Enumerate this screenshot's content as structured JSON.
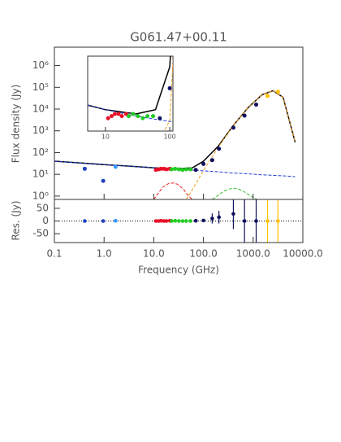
{
  "chart_data": {
    "type": "line",
    "title": "G061.47+00.11",
    "x_label": "Frequency (GHz)",
    "y_label": "Flux density (Jy)",
    "log_x": true,
    "log_y": true,
    "xlim": [
      0.1,
      10000
    ],
    "xticks": [
      0.1,
      {
        "value": 1,
        "label": "1.0"
      },
      {
        "value": 10,
        "label": "10.0"
      },
      {
        "value": 100,
        "label": "100.0"
      },
      {
        "value": 1000,
        "label": "1000.0"
      },
      {
        "value": 10000,
        "label": "10000.0"
      }
    ],
    "ylim": [
      0.7,
      7000000
    ],
    "yticks": [
      {
        "value": 1,
        "label": "10⁰"
      },
      {
        "value": 10,
        "label": "10¹"
      },
      {
        "value": 100,
        "label": "10²"
      },
      {
        "value": 1000,
        "label": "10³"
      },
      {
        "value": 10000,
        "label": "10⁴"
      },
      {
        "value": 100000,
        "label": "10⁵"
      },
      {
        "value": 1000000,
        "label": "10⁶"
      }
    ],
    "series": [
      {
        "color": "#000000",
        "style": "solid",
        "x": [
          0.1,
          0.3,
          1,
          3,
          10,
          30,
          60,
          100,
          200,
          400,
          800,
          1500,
          2500,
          4000,
          7000
        ],
        "values": [
          40,
          34,
          28,
          24,
          20,
          18,
          20,
          40,
          200,
          1800,
          12000,
          45000,
          70000,
          35000,
          300
        ]
      },
      {
        "color": "#1f3fd0",
        "style": "dashed",
        "x": [
          0.1,
          0.3,
          1,
          3,
          10,
          30,
          60,
          100,
          200,
          400,
          800,
          1500,
          2500,
          4000,
          7000
        ],
        "values": [
          40,
          34,
          28,
          24,
          20,
          17,
          15.5,
          14.5,
          13,
          11.5,
          10.5,
          9.5,
          9,
          8.5,
          7.8
        ]
      },
      {
        "color": "#e82020",
        "style": "dashed",
        "x": [
          10,
          15,
          20,
          25,
          30,
          40,
          50,
          60
        ],
        "values": [
          0.7,
          2.5,
          3.8,
          4,
          3.5,
          2,
          1,
          0.7
        ]
      },
      {
        "color": "#f0a020",
        "style": "dashed",
        "x": [
          45,
          60,
          100,
          200,
          400,
          800,
          1500,
          2500,
          4000,
          7000
        ],
        "values": [
          0.7,
          2,
          15,
          180,
          1790,
          12000,
          45000,
          70000,
          35000,
          300
        ]
      },
      {
        "color": "#30c030",
        "style": "dashed",
        "x": [
          150,
          250,
          350,
          450,
          600,
          900,
          1200
        ],
        "values": [
          0.7,
          1.6,
          2.2,
          2.3,
          1.8,
          1,
          0.7
        ]
      }
    ],
    "points": [
      {
        "color": "#2040c0",
        "x": [
          0.408,
          0.96
        ],
        "values": [
          18,
          5
        ]
      },
      {
        "color": "#3399ff",
        "x": [
          1.7
        ],
        "values": [
          22
        ]
      },
      {
        "color": "#e8102a",
        "x": [
          11,
          12.5,
          14,
          16,
          18,
          21
        ],
        "values": [
          16,
          17,
          18,
          18,
          17,
          18
        ]
      },
      {
        "color": "#22cc22",
        "x": [
          23,
          27,
          32,
          38,
          45,
          55
        ],
        "values": [
          17,
          18,
          17,
          16,
          17,
          17
        ]
      },
      {
        "color": "#101060",
        "x": [
          70,
          100,
          150,
          205,
          400,
          670,
          1150
        ],
        "values": [
          16,
          30,
          45,
          150,
          1400,
          5000,
          16000
        ]
      },
      {
        "color": "#ffc000",
        "x": [
          1950,
          3160
        ],
        "values": [
          40000,
          63000
        ]
      }
    ],
    "residuals": {
      "y_label": "Res. (Jy)",
      "ylim": [
        -85,
        85
      ],
      "yticks": [
        -50,
        0,
        50
      ],
      "series": [
        {
          "color": "#2040c0",
          "x": [
            0.408,
            0.96
          ],
          "values": [
            0,
            0
          ],
          "errors": [
            2,
            3
          ]
        },
        {
          "color": "#3399ff",
          "x": [
            1.7
          ],
          "values": [
            1
          ],
          "errors": [
            2
          ]
        },
        {
          "color": "#e8102a",
          "x": [
            11,
            12.5,
            14,
            16,
            18,
            21
          ],
          "values": [
            0,
            0,
            1,
            0,
            0,
            1
          ],
          "errors": [
            3,
            3,
            3,
            3,
            3,
            3
          ]
        },
        {
          "color": "#22cc22",
          "x": [
            23,
            27,
            32,
            38,
            45,
            55
          ],
          "values": [
            0,
            1,
            0,
            0,
            0,
            0
          ],
          "errors": [
            3,
            3,
            3,
            3,
            3,
            3
          ]
        },
        {
          "color": "#101060",
          "x": [
            70,
            100,
            150,
            205,
            400,
            670,
            1150
          ],
          "values": [
            1,
            2,
            10,
            15,
            28,
            0,
            0
          ],
          "errors": [
            3,
            5,
            20,
            25,
            60,
            300,
            300
          ]
        },
        {
          "color": "#ffc000",
          "x": [
            1950,
            3160
          ],
          "values": [
            0,
            0
          ],
          "errors": [
            300,
            300
          ]
        }
      ]
    },
    "inset": {
      "xlim": [
        5.3,
        112
      ],
      "xticks": [
        10,
        100
      ],
      "ylim": [
        10,
        45
      ]
    }
  }
}
